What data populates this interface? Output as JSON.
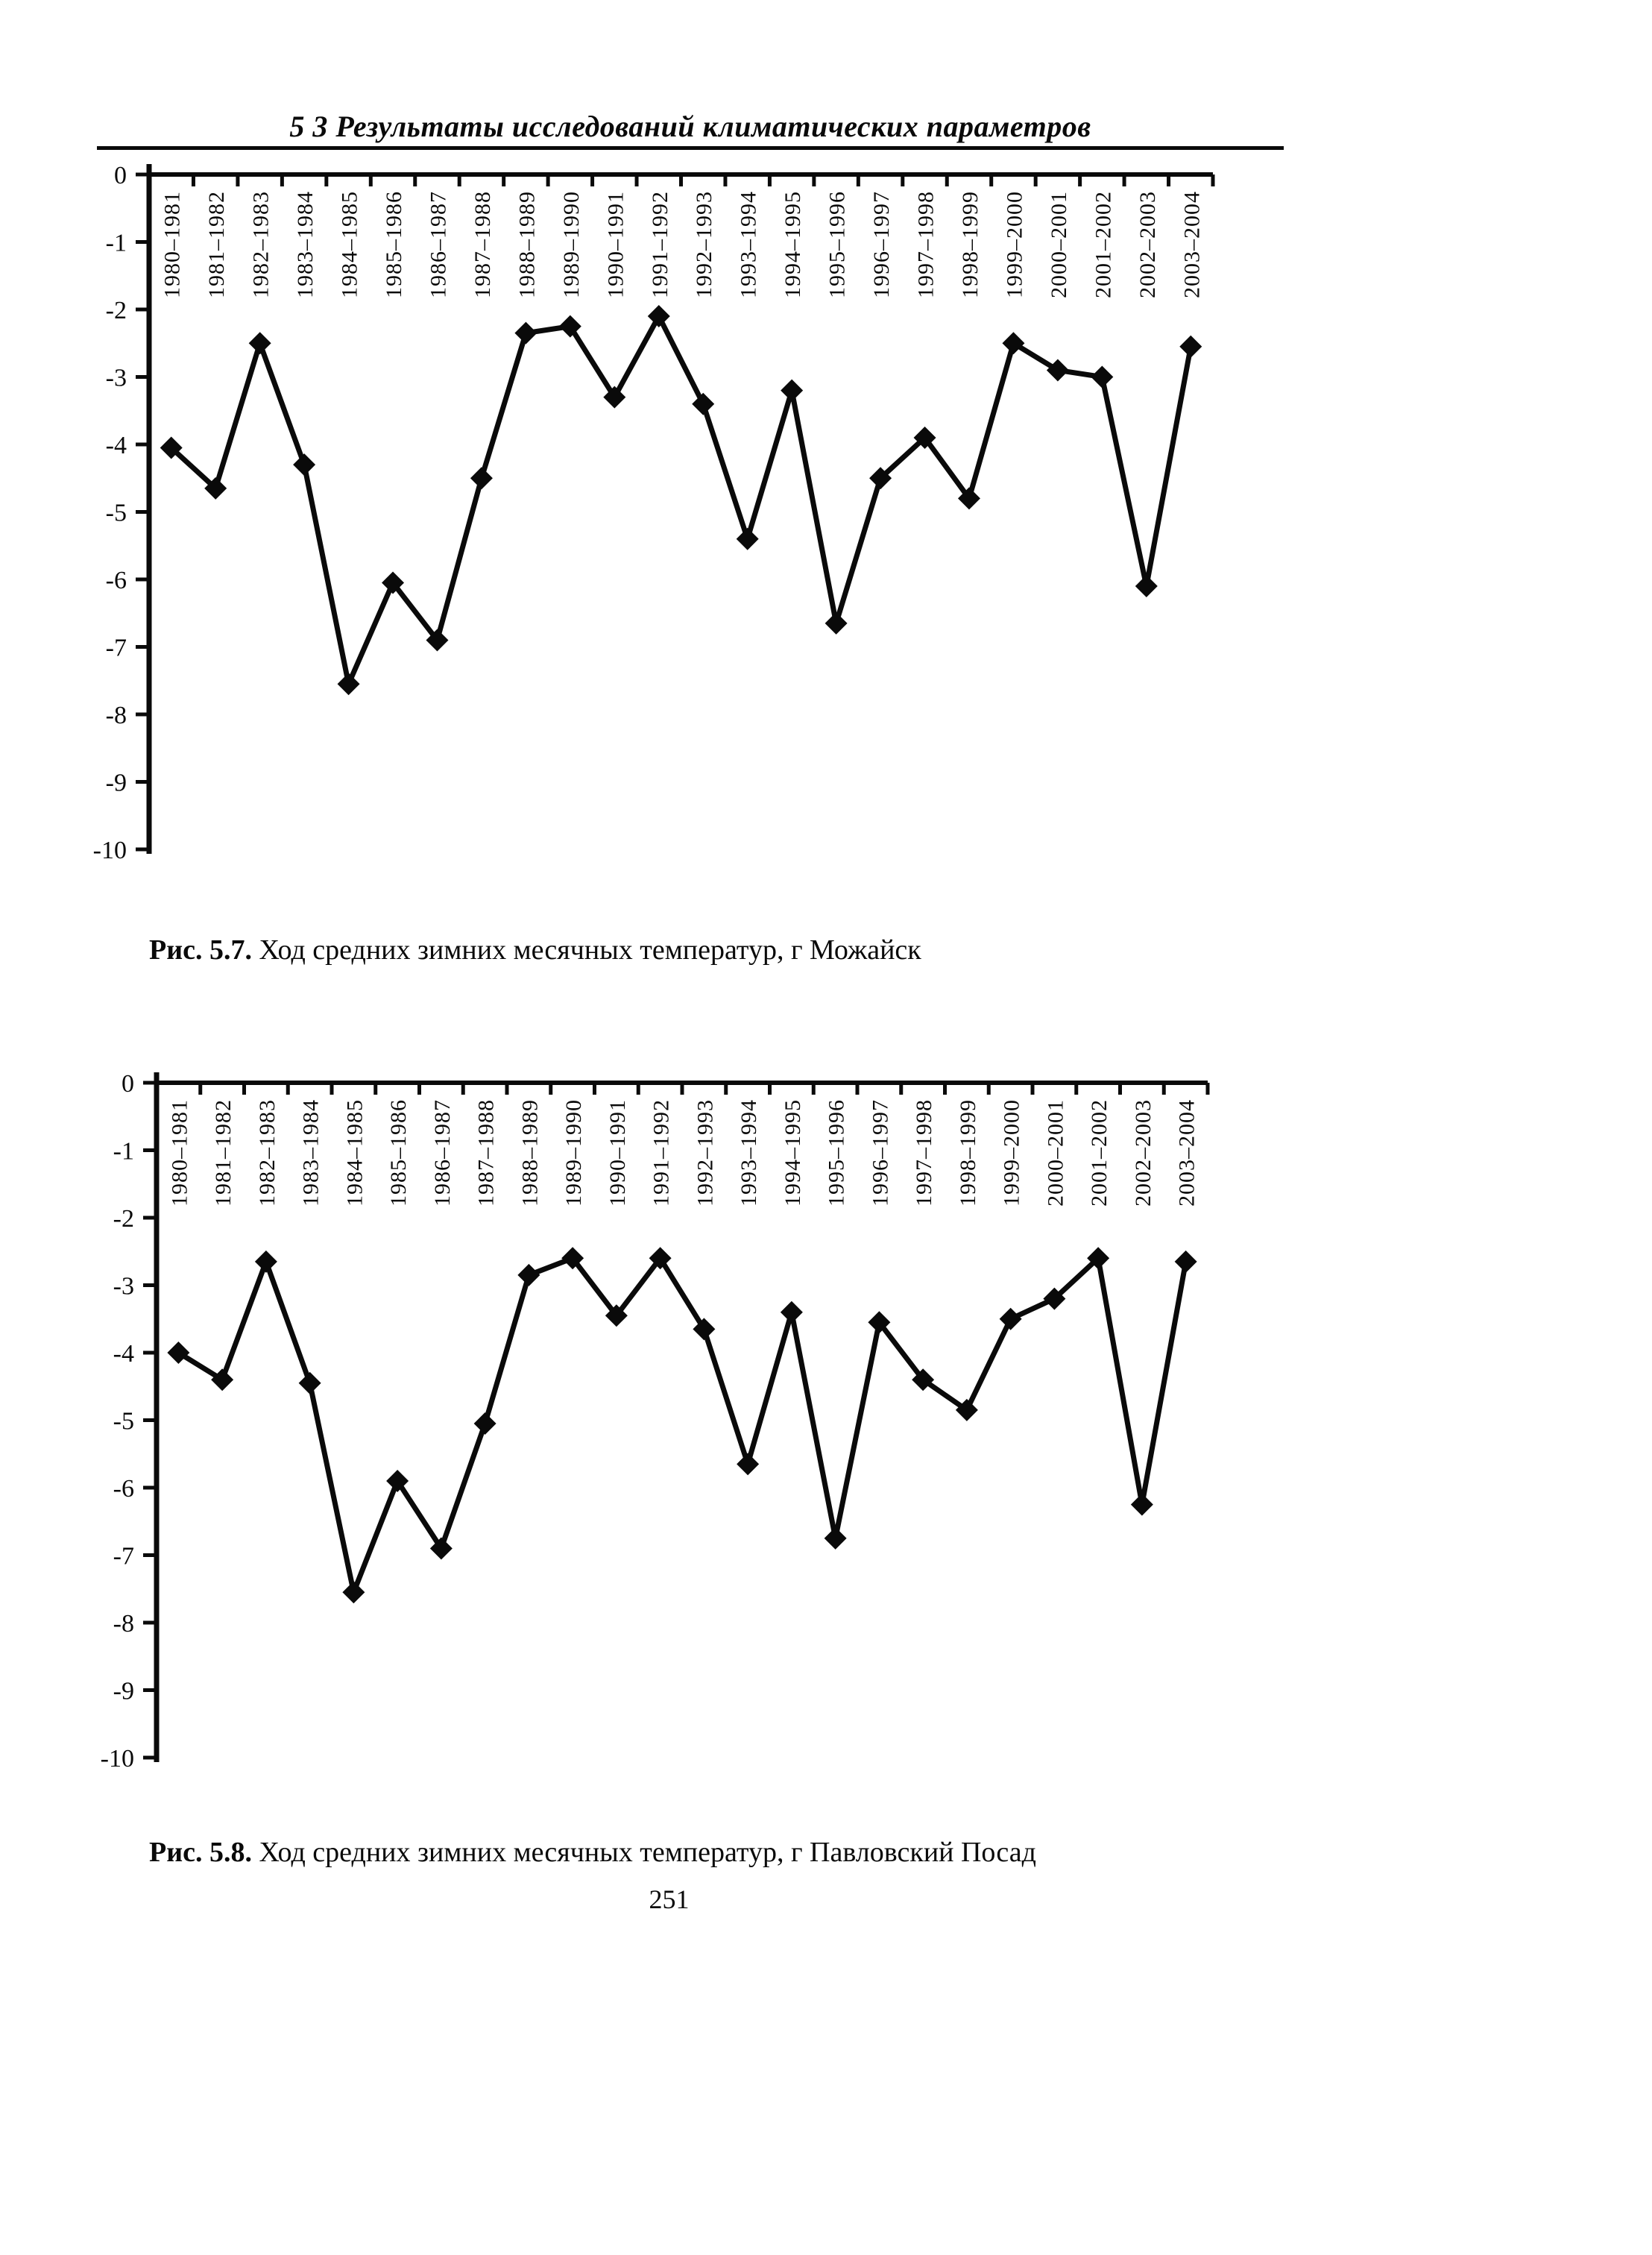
{
  "page": {
    "header": "5 3  Результаты исследований климатических параметров",
    "page_number": "251"
  },
  "figures": [
    {
      "caption_label": "Рис. 5.7.",
      "caption_text": "Ход средних зимних месячных температур, г  Можайск"
    },
    {
      "caption_label": "Рис. 5.8.",
      "caption_text": "Ход средних зимних месячных температур, г  Павловский Посад"
    }
  ],
  "chart_data": [
    {
      "type": "line",
      "title": "Рис. 5.7. Ход средних зимних месячных температур, г Можайск",
      "station": "Можайск",
      "categories": [
        "1980–1981",
        "1981–1982",
        "1982–1983",
        "1983–1984",
        "1984–1985",
        "1985–1986",
        "1986–1987",
        "1987–1988",
        "1988–1989",
        "1989–1990",
        "1990–1991",
        "1991–1992",
        "1992–1993",
        "1993–1994",
        "1994–1995",
        "1995–1996",
        "1996–1997",
        "1997–1998",
        "1998–1999",
        "1999–2000",
        "2000–2001",
        "2001–2002",
        "2002–2003",
        "2003–2004"
      ],
      "values": [
        -4.05,
        -4.65,
        -2.5,
        -4.3,
        -7.55,
        -6.05,
        -6.9,
        -4.5,
        -2.35,
        -2.25,
        -3.3,
        -2.1,
        -3.4,
        -5.4,
        -3.2,
        -6.65,
        -4.5,
        -3.9,
        -4.8,
        -2.5,
        -2.9,
        -3.0,
        -6.1,
        -2.55
      ],
      "ylim": [
        -10,
        0
      ],
      "yticks": [
        0,
        -1,
        -2,
        -3,
        -4,
        -5,
        -6,
        -7,
        -8,
        -9,
        -10
      ],
      "x_label_rotation": -90,
      "marker": "diamond",
      "color": "#0a0a0a",
      "grid": false,
      "legend": "none"
    },
    {
      "type": "line",
      "title": "Рис. 5.8. Ход средних зимних месячных температур, г Павловский Посад",
      "station": "Павловский Посад",
      "categories": [
        "1980–1981",
        "1981–1982",
        "1982–1983",
        "1983–1984",
        "1984–1985",
        "1985–1986",
        "1986–1987",
        "1987–1988",
        "1988–1989",
        "1989–1990",
        "1990–1991",
        "1991–1992",
        "1992–1993",
        "1993–1994",
        "1994–1995",
        "1995–1996",
        "1996–1997",
        "1997–1998",
        "1998–1999",
        "1999–2000",
        "2000–2001",
        "2001–2002",
        "2002–2003",
        "2003–2004"
      ],
      "values": [
        -4.0,
        -4.4,
        -2.65,
        -4.45,
        -7.55,
        -5.9,
        -6.9,
        -5.05,
        -2.85,
        -2.6,
        -3.45,
        -2.6,
        -3.65,
        -5.65,
        -3.4,
        -6.75,
        -3.55,
        -4.4,
        -4.85,
        -3.5,
        -3.2,
        -2.6,
        -6.25,
        -2.65
      ],
      "ylim": [
        -10,
        0
      ],
      "yticks": [
        0,
        -1,
        -2,
        -3,
        -4,
        -5,
        -6,
        -7,
        -8,
        -9,
        -10
      ],
      "x_label_rotation": -90,
      "marker": "diamond",
      "color": "#0a0a0a",
      "grid": false,
      "legend": "none"
    }
  ]
}
